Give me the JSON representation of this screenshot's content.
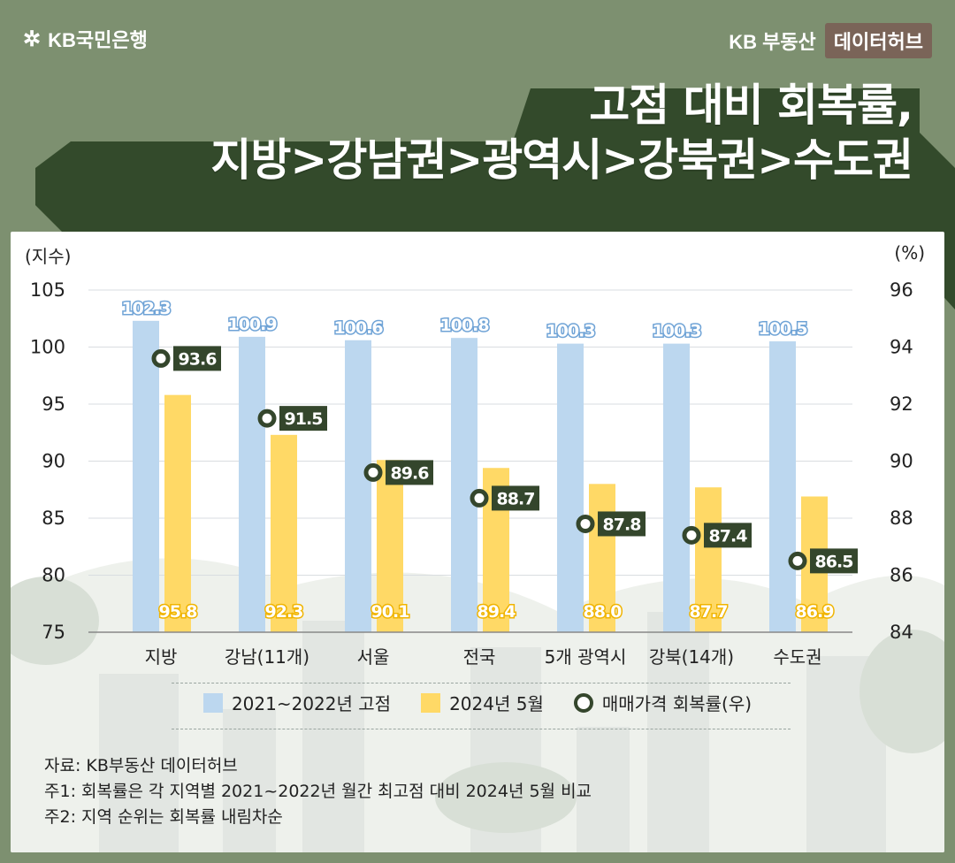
{
  "brand": {
    "bank": "KB국민은행",
    "logo_icon": "kb-star-icon"
  },
  "hub": {
    "name": "KB 부동산",
    "badge": "데이터허브"
  },
  "title": {
    "line1": "고점 대비 회복률,",
    "line2": "지방>강남권>광역시>강북권>수도권"
  },
  "colors": {
    "background": "#7d9070",
    "title_shadow": "#334a2b",
    "series_peak": "#bcd7ef",
    "series_2024": "#ffd966",
    "recovery_marker": "#34462c"
  },
  "chart_data": {
    "type": "bar",
    "categories": [
      "지방",
      "강남(11개)",
      "서울",
      "전국",
      "5개 광역시",
      "강북(14개)",
      "수도권"
    ],
    "series": [
      {
        "name": "2021~2022년 고점",
        "axis": "left",
        "values": [
          102.3,
          100.9,
          100.6,
          100.8,
          100.3,
          100.3,
          100.5
        ],
        "labels": [
          "102.3",
          "100.9",
          "100.6",
          "100.8",
          "100.3",
          "100.3",
          "100.5"
        ]
      },
      {
        "name": "2024년 5월",
        "axis": "left",
        "values": [
          95.8,
          92.3,
          90.1,
          89.4,
          88.0,
          87.7,
          86.9
        ],
        "labels": [
          "95.8",
          "92.3",
          "90.1",
          "89.4",
          "88.0",
          "87.7",
          "86.9"
        ]
      },
      {
        "name": "매매가격 회복률(우)",
        "axis": "right",
        "type": "marker",
        "values": [
          93.6,
          91.5,
          89.6,
          88.7,
          87.8,
          87.4,
          86.5
        ],
        "labels": [
          "93.6",
          "91.5",
          "89.6",
          "88.7",
          "87.8",
          "87.4",
          "86.5"
        ]
      }
    ],
    "y_left": {
      "unit": "(지수)",
      "ylim": [
        75,
        105
      ],
      "ticks": [
        "105",
        "100",
        "95",
        "90",
        "85",
        "80",
        "75"
      ]
    },
    "y_right": {
      "unit": "(%)",
      "ylim": [
        84,
        96
      ],
      "ticks": [
        "96",
        "94",
        "92",
        "90",
        "88",
        "86",
        "84"
      ]
    },
    "grid": true,
    "legend_position": "bottom"
  },
  "notes": [
    "자료: KB부동산 데이터허브",
    "주1: 회복률은 각 지역별 2021~2022년 월간 최고점 대비 2024년 5월 비교",
    "주2: 지역 순위는 회복률 내림차순"
  ]
}
